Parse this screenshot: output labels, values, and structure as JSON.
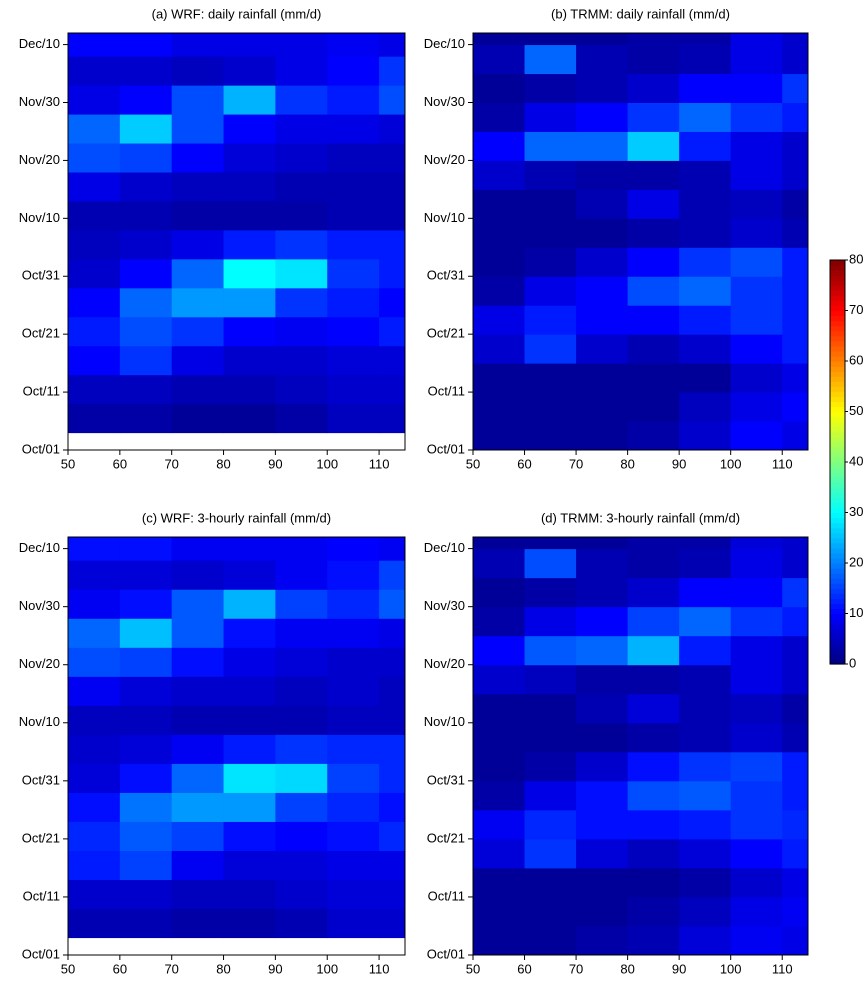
{
  "chart_data": [
    {
      "type": "heatmap",
      "title": "(a) WRF: daily rainfall (mm/d)",
      "xlim": [
        50,
        115
      ],
      "xticks": [
        50,
        60,
        70,
        80,
        90,
        100,
        110
      ],
      "ylim": [
        0,
        72
      ],
      "yticks": [
        {
          "value": 0,
          "label": "Oct/01"
        },
        {
          "value": 10,
          "label": "Oct/11"
        },
        {
          "value": 20,
          "label": "Oct/21"
        },
        {
          "value": 30,
          "label": "Oct/31"
        },
        {
          "value": 40,
          "label": "Nov/10"
        },
        {
          "value": 50,
          "label": "Nov/20"
        },
        {
          "value": 60,
          "label": "Nov/30"
        },
        {
          "value": 70,
          "label": "Dec/10"
        }
      ],
      "xbins": [
        50,
        60,
        70,
        80,
        90,
        100,
        110,
        115
      ],
      "ybins": [
        3,
        8,
        13,
        18,
        23,
        28,
        33,
        38,
        43,
        48,
        53,
        58,
        63,
        68,
        72
      ],
      "z": [
        [
          3,
          3,
          2,
          2,
          3,
          5,
          5
        ],
        [
          5,
          5,
          4,
          4,
          5,
          6,
          6
        ],
        [
          10,
          14,
          8,
          6,
          6,
          7,
          7
        ],
        [
          12,
          16,
          14,
          10,
          9,
          10,
          12
        ],
        [
          10,
          18,
          22,
          22,
          14,
          12,
          10
        ],
        [
          6,
          10,
          18,
          30,
          28,
          14,
          12
        ],
        [
          5,
          6,
          8,
          12,
          14,
          12,
          12
        ],
        [
          4,
          4,
          3,
          3,
          3,
          4,
          4
        ],
        [
          8,
          6,
          5,
          5,
          4,
          4,
          4
        ],
        [
          16,
          15,
          10,
          7,
          6,
          5,
          5
        ],
        [
          18,
          26,
          16,
          10,
          8,
          8,
          7
        ],
        [
          8,
          10,
          16,
          24,
          14,
          12,
          16
        ],
        [
          6,
          6,
          5,
          6,
          8,
          10,
          14
        ],
        [
          10,
          10,
          8,
          8,
          8,
          9,
          8
        ]
      ]
    },
    {
      "type": "heatmap",
      "title": "(b) TRMM: daily rainfall (mm/d)",
      "xlim": [
        50,
        115
      ],
      "xticks": [
        50,
        60,
        70,
        80,
        90,
        100,
        110
      ],
      "ylim": [
        0,
        72
      ],
      "yticks": [
        {
          "value": 0,
          "label": "Oct/01"
        },
        {
          "value": 10,
          "label": "Oct/11"
        },
        {
          "value": 20,
          "label": "Oct/21"
        },
        {
          "value": 30,
          "label": "Oct/31"
        },
        {
          "value": 40,
          "label": "Nov/10"
        },
        {
          "value": 50,
          "label": "Nov/20"
        },
        {
          "value": 60,
          "label": "Nov/30"
        },
        {
          "value": 70,
          "label": "Dec/10"
        }
      ],
      "xbins": [
        50,
        60,
        70,
        80,
        90,
        100,
        110,
        115
      ],
      "ybins": [
        0,
        5,
        10,
        15,
        20,
        25,
        30,
        35,
        40,
        45,
        50,
        55,
        60,
        65,
        70,
        72
      ],
      "z": [
        [
          2,
          2,
          2,
          3,
          6,
          10,
          8
        ],
        [
          2,
          2,
          2,
          2,
          5,
          8,
          10
        ],
        [
          2,
          2,
          2,
          2,
          2,
          6,
          8
        ],
        [
          6,
          14,
          6,
          4,
          6,
          10,
          12
        ],
        [
          8,
          12,
          10,
          10,
          12,
          14,
          12
        ],
        [
          3,
          8,
          10,
          16,
          18,
          14,
          12
        ],
        [
          2,
          3,
          6,
          10,
          14,
          16,
          12
        ],
        [
          2,
          2,
          2,
          3,
          4,
          6,
          4
        ],
        [
          2,
          2,
          4,
          8,
          4,
          5,
          3
        ],
        [
          6,
          4,
          3,
          3,
          4,
          8,
          6
        ],
        [
          10,
          18,
          18,
          26,
          12,
          8,
          6
        ],
        [
          3,
          8,
          10,
          14,
          18,
          14,
          12
        ],
        [
          2,
          3,
          4,
          6,
          10,
          10,
          14
        ],
        [
          4,
          18,
          4,
          3,
          4,
          8,
          6
        ],
        [
          2,
          2,
          2,
          3,
          3,
          8,
          6
        ]
      ]
    },
    {
      "type": "heatmap",
      "title": "(c) WRF: 3-hourly rainfall (mm/d)",
      "xlim": [
        50,
        115
      ],
      "xticks": [
        50,
        60,
        70,
        80,
        90,
        100,
        110
      ],
      "ylim": [
        0,
        72
      ],
      "yticks": [
        {
          "value": 0,
          "label": "Oct/01"
        },
        {
          "value": 10,
          "label": "Oct/11"
        },
        {
          "value": 20,
          "label": "Oct/21"
        },
        {
          "value": 30,
          "label": "Oct/31"
        },
        {
          "value": 40,
          "label": "Nov/10"
        },
        {
          "value": 50,
          "label": "Nov/20"
        },
        {
          "value": 60,
          "label": "Nov/30"
        },
        {
          "value": 70,
          "label": "Dec/10"
        }
      ],
      "xbins": [
        50,
        60,
        70,
        80,
        90,
        100,
        110,
        115
      ],
      "ybins": [
        3,
        8,
        13,
        18,
        23,
        28,
        33,
        38,
        43,
        48,
        53,
        58,
        63,
        68,
        72
      ],
      "z": [
        [
          4,
          4,
          3,
          3,
          4,
          6,
          6
        ],
        [
          6,
          6,
          5,
          5,
          6,
          7,
          7
        ],
        [
          12,
          15,
          9,
          7,
          7,
          8,
          8
        ],
        [
          13,
          17,
          15,
          11,
          10,
          11,
          13
        ],
        [
          11,
          19,
          22,
          22,
          15,
          13,
          11
        ],
        [
          7,
          11,
          18,
          28,
          27,
          15,
          13
        ],
        [
          6,
          7,
          9,
          12,
          14,
          13,
          13
        ],
        [
          5,
          5,
          4,
          4,
          4,
          5,
          5
        ],
        [
          9,
          7,
          6,
          6,
          5,
          6,
          5
        ],
        [
          16,
          15,
          11,
          8,
          7,
          6,
          6
        ],
        [
          18,
          25,
          17,
          11,
          9,
          9,
          8
        ],
        [
          9,
          11,
          17,
          24,
          15,
          13,
          17
        ],
        [
          7,
          7,
          6,
          7,
          9,
          11,
          15
        ],
        [
          11,
          11,
          9,
          9,
          9,
          10,
          9
        ]
      ]
    },
    {
      "type": "heatmap",
      "title": "(d) TRMM: 3-hourly rainfall (mm/d)",
      "xlim": [
        50,
        115
      ],
      "xticks": [
        50,
        60,
        70,
        80,
        90,
        100,
        110
      ],
      "ylim": [
        0,
        72
      ],
      "yticks": [
        {
          "value": 0,
          "label": "Oct/01"
        },
        {
          "value": 10,
          "label": "Oct/11"
        },
        {
          "value": 20,
          "label": "Oct/21"
        },
        {
          "value": 30,
          "label": "Oct/31"
        },
        {
          "value": 40,
          "label": "Nov/10"
        },
        {
          "value": 50,
          "label": "Nov/20"
        },
        {
          "value": 60,
          "label": "Nov/30"
        },
        {
          "value": 70,
          "label": "Dec/10"
        }
      ],
      "xbins": [
        50,
        60,
        70,
        80,
        90,
        100,
        110,
        115
      ],
      "ybins": [
        0,
        5,
        10,
        15,
        20,
        25,
        30,
        35,
        40,
        45,
        50,
        55,
        60,
        65,
        70,
        72
      ],
      "z": [
        [
          2,
          2,
          3,
          4,
          7,
          9,
          8
        ],
        [
          2,
          2,
          2,
          3,
          5,
          8,
          9
        ],
        [
          2,
          2,
          2,
          2,
          3,
          6,
          8
        ],
        [
          7,
          14,
          7,
          5,
          7,
          10,
          12
        ],
        [
          9,
          13,
          11,
          11,
          12,
          14,
          13
        ],
        [
          3,
          8,
          11,
          16,
          17,
          14,
          12
        ],
        [
          2,
          3,
          6,
          11,
          14,
          15,
          12
        ],
        [
          2,
          2,
          2,
          3,
          4,
          6,
          4
        ],
        [
          2,
          2,
          4,
          7,
          4,
          5,
          3
        ],
        [
          6,
          5,
          3,
          3,
          4,
          8,
          6
        ],
        [
          10,
          17,
          18,
          24,
          12,
          8,
          6
        ],
        [
          3,
          8,
          10,
          15,
          18,
          14,
          12
        ],
        [
          2,
          3,
          4,
          6,
          10,
          10,
          14
        ],
        [
          4,
          16,
          4,
          3,
          4,
          8,
          6
        ],
        [
          2,
          2,
          2,
          3,
          3,
          7,
          6
        ]
      ]
    }
  ],
  "colorbar": {
    "colormap": "jet",
    "lim": [
      0,
      80
    ],
    "ticks": [
      0,
      10,
      20,
      30,
      40,
      50,
      60,
      70,
      80
    ]
  }
}
